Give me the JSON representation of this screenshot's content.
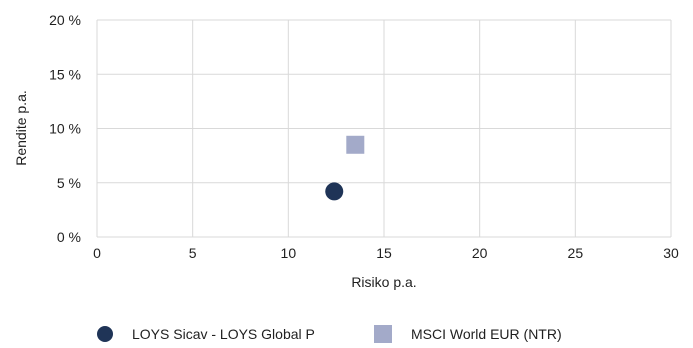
{
  "chart_data": {
    "type": "scatter",
    "xlabel": "Risiko p.a.",
    "ylabel": "Rendite p.a.",
    "xlim": [
      0,
      30
    ],
    "ylim": [
      0,
      20
    ],
    "x_ticks": [
      {
        "value": 0,
        "label": "0"
      },
      {
        "value": 5,
        "label": "5"
      },
      {
        "value": 10,
        "label": "10"
      },
      {
        "value": 15,
        "label": "15"
      },
      {
        "value": 20,
        "label": "20"
      },
      {
        "value": 25,
        "label": "25"
      },
      {
        "value": 30,
        "label": "30"
      }
    ],
    "y_ticks": [
      {
        "value": 0,
        "label": "0 %"
      },
      {
        "value": 5,
        "label": "5 %"
      },
      {
        "value": 10,
        "label": "10 %"
      },
      {
        "value": 15,
        "label": "15 %"
      },
      {
        "value": 20,
        "label": "20 %"
      }
    ],
    "grid": true,
    "legend_position": "bottom",
    "series": [
      {
        "name": "LOYS Sicav - LOYS Global P",
        "marker": "circle",
        "color": "#1f3457",
        "points": [
          {
            "x": 12.4,
            "y": 4.2
          }
        ]
      },
      {
        "name": "MSCI World EUR (NTR)",
        "marker": "square",
        "color": "#a3aac9",
        "points": [
          {
            "x": 13.5,
            "y": 8.5
          }
        ]
      }
    ]
  }
}
